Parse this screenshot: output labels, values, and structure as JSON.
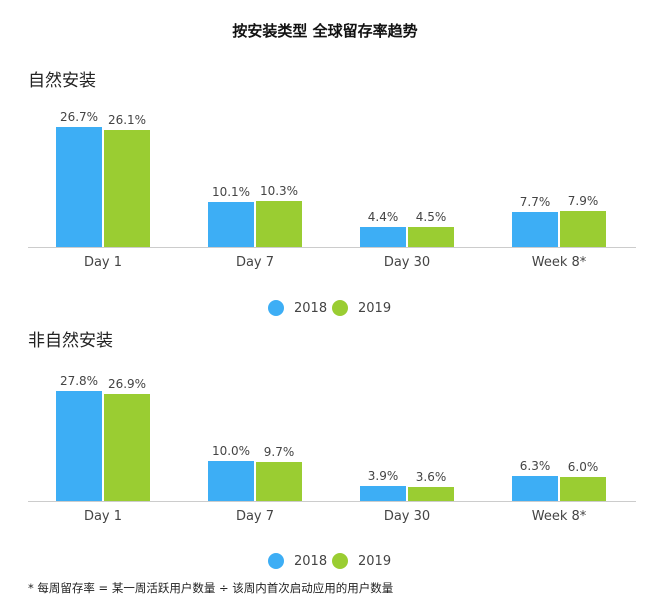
{
  "title": "按安装类型 全球留存率趋势",
  "footnote": "* 每周留存率 = 某一周活跃用户数量 ÷ 该周内首次启动应用的用户数量",
  "colors": {
    "2018": "#3daef5",
    "2019": "#9acd32"
  },
  "chart_data": [
    {
      "type": "bar",
      "title": "自然安装",
      "categories": [
        "Day 1",
        "Day 7",
        "Day 30",
        "Week 8*"
      ],
      "series": [
        {
          "name": "2018",
          "values": [
            26.7,
            10.1,
            4.4,
            7.7
          ],
          "labels": [
            "26.7%",
            "10.1%",
            "4.4%",
            "7.7%"
          ]
        },
        {
          "name": "2019",
          "values": [
            26.1,
            10.3,
            4.5,
            7.9
          ],
          "labels": [
            "26.1%",
            "10.3%",
            "4.5%",
            "7.9%"
          ]
        }
      ],
      "ylim": [
        0,
        30
      ],
      "legend": "bottom-center",
      "grid": false
    },
    {
      "type": "bar",
      "title": "非自然安装",
      "categories": [
        "Day 1",
        "Day 7",
        "Day 30",
        "Week 8*"
      ],
      "series": [
        {
          "name": "2018",
          "values": [
            27.8,
            10.0,
            3.9,
            6.3
          ],
          "labels": [
            "27.8%",
            "10.0%",
            "3.9%",
            "6.3%"
          ]
        },
        {
          "name": "2019",
          "values": [
            26.9,
            9.7,
            3.6,
            6.0
          ],
          "labels": [
            "26.9%",
            "9.7%",
            "3.6%",
            "6.0%"
          ]
        }
      ],
      "ylim": [
        0,
        34
      ],
      "legend": "bottom-center",
      "grid": false
    }
  ]
}
